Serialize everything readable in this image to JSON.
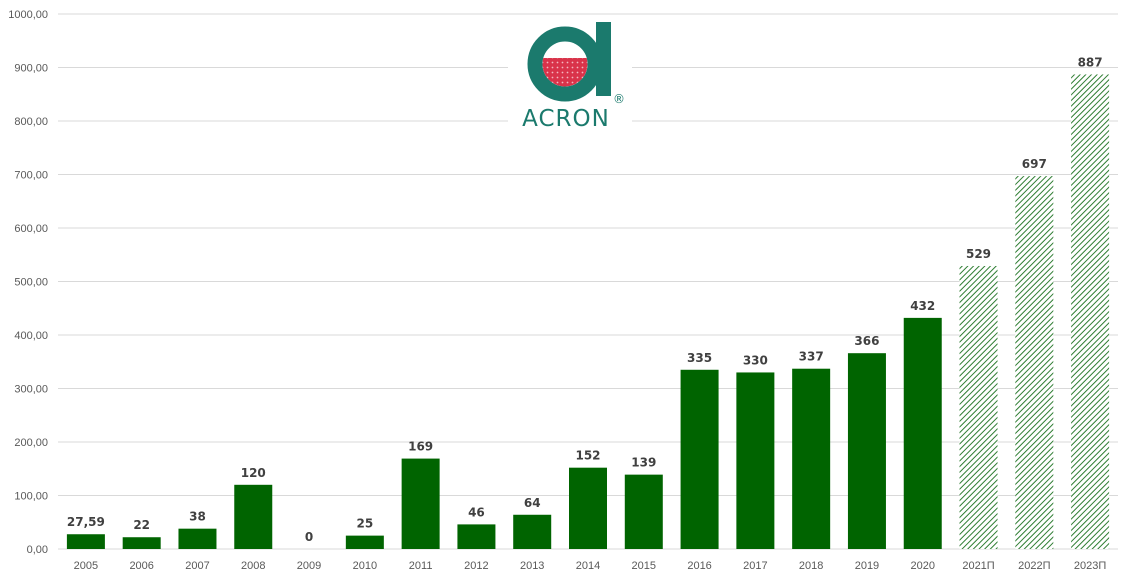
{
  "chart_data": {
    "type": "bar",
    "categories": [
      "2005",
      "2006",
      "2007",
      "2008",
      "2009",
      "2010",
      "2011",
      "2012",
      "2013",
      "2014",
      "2015",
      "2016",
      "2017",
      "2018",
      "2019",
      "2020",
      "2021П",
      "2022П",
      "2023П"
    ],
    "values": [
      27.59,
      22,
      38,
      120,
      0,
      25,
      169,
      46,
      64,
      152,
      139,
      335,
      330,
      337,
      366,
      432,
      529,
      697,
      887
    ],
    "data_labels": [
      "27,59",
      "22",
      "38",
      "120",
      "0",
      "25",
      "169",
      "46",
      "64",
      "152",
      "139",
      "335",
      "330",
      "337",
      "366",
      "432",
      "529",
      "697",
      "887"
    ],
    "forecast_from_index": 16,
    "ylim": [
      0,
      1000
    ],
    "yticks": [
      0,
      100,
      200,
      300,
      400,
      500,
      600,
      700,
      800,
      900,
      1000
    ],
    "ytick_labels": [
      "0,00",
      "100,00",
      "200,00",
      "300,00",
      "400,00",
      "500,00",
      "600,00",
      "700,00",
      "800,00",
      "900,00",
      "1000,00"
    ],
    "grid": true,
    "colors": {
      "actual": "#006400",
      "forecast_hatch": "#2e7d32",
      "grid": "#d9d9d9"
    }
  },
  "logo": {
    "text": "ACRON",
    "registered": "®",
    "colors": {
      "teal": "#1b7a6d",
      "red": "#d9334a"
    }
  }
}
